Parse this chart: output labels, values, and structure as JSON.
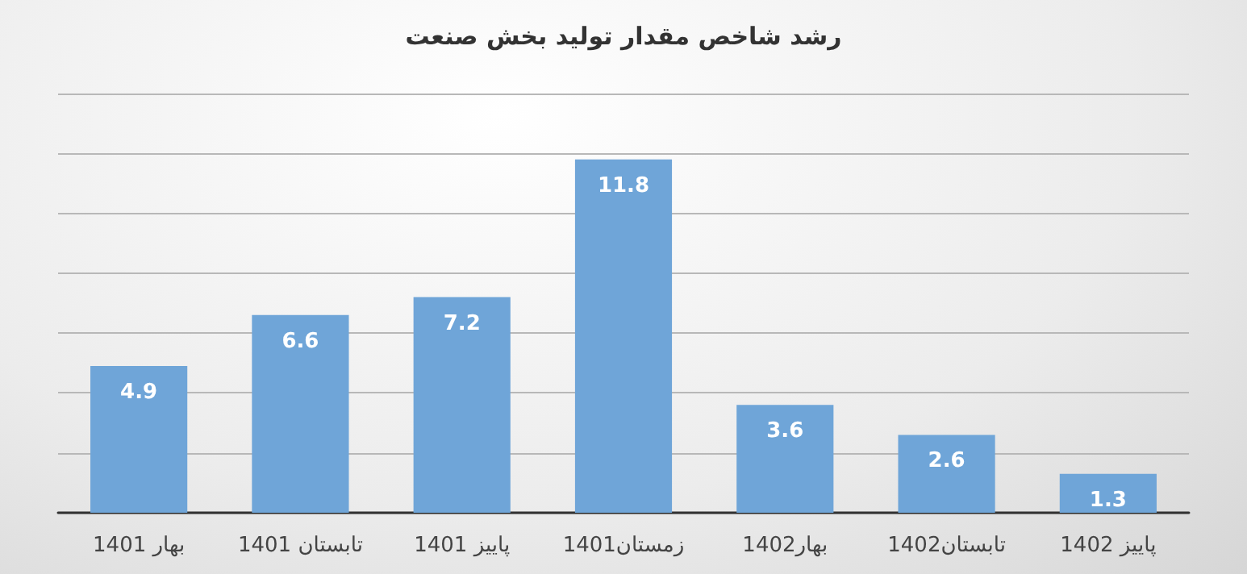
{
  "chart_data": {
    "type": "bar",
    "title": "رشد شاخص مقدار تولید بخش صنعت",
    "categories": [
      "بهار 1401",
      "تابستان 1401",
      "پاییز 1401",
      "زمستان1401",
      "بهار1402",
      "تابستان1402",
      "پاییز 1402"
    ],
    "values": [
      4.9,
      6.6,
      7.2,
      11.8,
      3.6,
      2.6,
      1.3
    ],
    "color": "#6fa5d8",
    "ylim": [
      0,
      14
    ],
    "yticks": [
      {
        "value": 0,
        "label": null
      },
      {
        "value": 2,
        "label": null
      },
      {
        "value": 4,
        "label": null
      },
      {
        "value": 6,
        "label": null
      },
      {
        "value": 8,
        "label": null
      },
      {
        "value": 10,
        "label": null
      },
      {
        "value": 12,
        "label": null
      },
      {
        "value": 14,
        "label": null
      }
    ],
    "grid": "y",
    "tick_labels": "x",
    "data_labels": true
  }
}
